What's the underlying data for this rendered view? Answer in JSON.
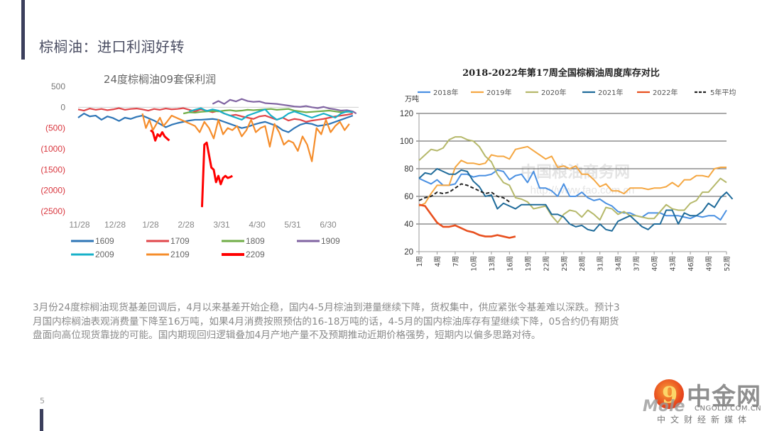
{
  "slide": {
    "title": "棕榈油：进口利润好转",
    "page_number": "5",
    "body_lines": [
      "3月份24度棕榈油现货基差回调后，4月以来基差开始企稳，国内4-5月棕油到港量继续下降，货权集中，供应紧张令基差难以深跌。预计3",
      "月国内棕榈油表观消费量下降至16万吨，如果4月消费按照预估的16-18万吨的话，4-5月的国内棕油库存有望继续下降，05合约仍有期货",
      "盘面向高位现货靠拢的可能。国内期现回归逻辑叠加4月产地产量不及预期推动近期价格强势，短期内以偏多思路对待。"
    ]
  },
  "logo": {
    "name_cn": "中金网",
    "url": "CNGOLD.COM.CN",
    "tagline": "中文财经新媒体",
    "overlay_text": "Mole",
    "glyph": "9"
  },
  "chart_data": [
    {
      "type": "line",
      "title": "24度棕榈油09套保利润",
      "xlabel": "",
      "ylabel": "",
      "ylim": [
        -2500,
        500
      ],
      "yticks": [
        500,
        0,
        -500,
        -1000,
        -1500,
        -2000,
        -2500
      ],
      "ytick_labels": [
        "500",
        "0",
        "(500)",
        "(1000)",
        "(1500)",
        "(2000)",
        "(2500)"
      ],
      "xtick_labels": [
        "11/28",
        "12/28",
        "1/28",
        "2/28",
        "3/31",
        "4/30",
        "5/31",
        "6/30"
      ],
      "legend_position": "bottom",
      "x_domain": [
        0,
        240
      ],
      "series": [
        {
          "name": "1609",
          "color": "#2e75b6",
          "x": [
            0,
            5,
            10,
            15,
            20,
            25,
            30,
            35,
            40,
            45,
            50,
            55,
            60,
            65,
            70,
            75,
            80,
            85,
            90,
            95,
            100,
            105,
            110,
            115,
            120,
            125,
            130,
            135,
            140,
            145,
            150,
            155,
            160,
            165,
            170,
            175,
            180,
            185,
            190,
            195,
            200,
            205,
            210,
            215,
            220,
            225,
            230,
            235
          ],
          "values": [
            -250,
            -150,
            -220,
            -200,
            -300,
            -220,
            -260,
            -330,
            -250,
            -280,
            -230,
            -200,
            -260,
            -320,
            -400,
            -480,
            -420,
            -380,
            -350,
            -320,
            -300,
            -300,
            -290,
            -280,
            -300,
            -350,
            -400,
            -450,
            -500,
            -470,
            -420,
            -380,
            -350,
            -400,
            -450,
            -550,
            -600,
            -500,
            -420,
            -380,
            -400,
            -450,
            -430,
            -400,
            -350,
            -300,
            -250,
            -200
          ]
        },
        {
          "name": "1709",
          "color": "#e0464a",
          "x": [
            0,
            5,
            10,
            15,
            20,
            25,
            30,
            35,
            40,
            45,
            50,
            55,
            60,
            65,
            70,
            75,
            80,
            85,
            90,
            95,
            100,
            105,
            110,
            115,
            120,
            125,
            130,
            135,
            140,
            145,
            150,
            155,
            160,
            165,
            170,
            175,
            180,
            185,
            190,
            195,
            200,
            205,
            210,
            215,
            220,
            225,
            230,
            235
          ],
          "values": [
            -50,
            -80,
            -30,
            -60,
            -40,
            -70,
            -50,
            -20,
            -60,
            -40,
            -30,
            -50,
            -80,
            -40,
            -60,
            -30,
            -50,
            -40,
            -20,
            -60,
            -100,
            -50,
            -80,
            -120,
            -80,
            -150,
            -200,
            -180,
            -220,
            -250,
            -280,
            -220,
            -200,
            -250,
            -300,
            -250,
            -320,
            -280,
            -300,
            -350,
            -320,
            -300,
            -280,
            -250,
            -220,
            -200,
            -180,
            -150
          ]
        },
        {
          "name": "1809",
          "color": "#70ad47",
          "x": [
            90,
            95,
            100,
            105,
            110,
            115,
            120,
            125,
            130,
            135,
            140,
            145,
            150,
            155,
            160,
            165,
            170,
            175,
            180,
            185,
            190,
            195,
            200,
            205,
            210,
            215,
            220,
            225,
            230,
            235
          ],
          "values": [
            -150,
            -120,
            -130,
            -110,
            -100,
            -90,
            -100,
            -80,
            -70,
            -90,
            -80,
            -60,
            -70,
            -60,
            -50,
            -40,
            -60,
            -50,
            -40,
            -80,
            -100,
            -120,
            -110,
            -100,
            -90,
            -80,
            -100,
            -120,
            -110,
            -100
          ]
        },
        {
          "name": "1909",
          "color": "#8064a2",
          "x": [
            115,
            120,
            125,
            130,
            135,
            140,
            145,
            150,
            155,
            160,
            165,
            170,
            175,
            180,
            185,
            190,
            195,
            200,
            205,
            210,
            215,
            220,
            225,
            230,
            235,
            238
          ],
          "values": [
            80,
            150,
            80,
            180,
            140,
            200,
            150,
            130,
            140,
            100,
            90,
            80,
            60,
            40,
            20,
            10,
            30,
            0,
            -20,
            10,
            -30,
            -50,
            -80,
            -70,
            -100,
            -150
          ]
        },
        {
          "name": "2009",
          "color": "#17b1c9",
          "x": [
            95,
            100,
            105,
            110,
            115,
            120,
            125,
            130,
            135,
            140,
            145,
            150,
            155,
            160,
            165,
            170,
            175,
            180,
            185,
            190,
            195,
            200,
            205,
            210,
            215,
            220,
            225,
            230,
            235
          ],
          "values": [
            -100,
            -60,
            -20,
            -90,
            -50,
            -80,
            -150,
            -200,
            -250,
            -300,
            -200,
            -150,
            -100,
            -50,
            -200,
            -300,
            -250,
            -150,
            -100,
            -150,
            -200,
            -250,
            -200,
            -150,
            -200,
            -250,
            -150,
            -100,
            -120
          ]
        },
        {
          "name": "2109",
          "color": "#f58d2b",
          "x": [
            55,
            58,
            61,
            64,
            67,
            70,
            73,
            76,
            80,
            84,
            88,
            92,
            96,
            100,
            104,
            108,
            112,
            116,
            120,
            124,
            128,
            132,
            136,
            140,
            144,
            148,
            152,
            156,
            160,
            164,
            168,
            172,
            176,
            180,
            184,
            188,
            192,
            196,
            200,
            204,
            208,
            212,
            216,
            220,
            224,
            228,
            232
          ],
          "values": [
            -150,
            -500,
            -300,
            -550,
            -400,
            -250,
            -450,
            -350,
            -200,
            -250,
            -300,
            -350,
            -400,
            -450,
            -600,
            -350,
            -500,
            -750,
            -300,
            -650,
            -500,
            -550,
            -450,
            -700,
            -550,
            -300,
            -600,
            -500,
            -450,
            -950,
            -400,
            -600,
            -900,
            -800,
            -850,
            -1050,
            -700,
            -900,
            -1300,
            -500,
            -650,
            -300,
            -600,
            -450,
            -350,
            -550,
            -400
          ]
        },
        {
          "name": "2209",
          "color": "#ff0000",
          "x": [
            62,
            64,
            66,
            68,
            70,
            72,
            74,
            76,
            78,
            106,
            108,
            110,
            114,
            116,
            118,
            120,
            122,
            124,
            126,
            128,
            130,
            132
          ],
          "values": [
            -550,
            -600,
            -800,
            -650,
            -700,
            -600,
            -700,
            -750,
            -800,
            -2400,
            -900,
            -850,
            -1450,
            -1500,
            -1800,
            -1650,
            -1850,
            -1700,
            -1650,
            -1700,
            -1680,
            -1650
          ]
        }
      ]
    },
    {
      "type": "line",
      "title": "2018-2022年第17周全国棕榈油周度库存对比",
      "ylabel": "万吨",
      "xlabel": "",
      "ylim": [
        20,
        120
      ],
      "yticks": [
        20,
        40,
        60,
        80,
        100,
        120
      ],
      "xtick_labels": [
        "1周",
        "4周",
        "7周",
        "10周",
        "13周",
        "16周",
        "19周",
        "22周",
        "25周",
        "28周",
        "31周",
        "34周",
        "37周",
        "40周",
        "43周",
        "46周",
        "49周",
        "52周"
      ],
      "x_domain": [
        1,
        52
      ],
      "grid": true,
      "legend_position": "top",
      "watermark": "中国粮油商务网 http://www.fao.com.cn",
      "series": [
        {
          "name": "2018年",
          "color": "#4a90e2",
          "dash": false,
          "values": [
            73,
            71,
            69,
            72,
            68,
            68,
            69,
            76,
            76,
            74,
            75,
            75,
            76,
            79,
            78,
            72,
            75,
            76,
            70,
            78,
            66,
            66,
            64,
            60,
            69,
            60,
            60,
            63,
            59,
            57,
            58,
            55,
            53,
            49,
            48,
            48,
            46,
            45,
            48,
            48,
            48,
            46,
            46,
            46,
            45,
            44,
            46,
            45,
            46,
            46,
            43,
            50
          ]
        },
        {
          "name": "2019年",
          "color": "#f5a742",
          "dash": false,
          "values": [
            53,
            55,
            62,
            68,
            68,
            68,
            81,
            86,
            84,
            84,
            83,
            84,
            90,
            89,
            89,
            87,
            94,
            95,
            96,
            93,
            90,
            87,
            89,
            81,
            82,
            80,
            82,
            76,
            76,
            72,
            67,
            69,
            64,
            64,
            62,
            66,
            66,
            66,
            65,
            66,
            66,
            67,
            70,
            67,
            72,
            72,
            75,
            75,
            74,
            80,
            81,
            81
          ]
        },
        {
          "name": "2020年",
          "color": "#b5b86a",
          "dash": false,
          "values": [
            86,
            90,
            94,
            93,
            95,
            101,
            103,
            103,
            101,
            100,
            96,
            89,
            85,
            76,
            70,
            68,
            59,
            58,
            56,
            51,
            52,
            53,
            46,
            41,
            47,
            50,
            49,
            45,
            50,
            47,
            43,
            52,
            51,
            47,
            49,
            46,
            46,
            45,
            44,
            44,
            49,
            54,
            51,
            50,
            50,
            55,
            57,
            63,
            63,
            68,
            73,
            70
          ]
        },
        {
          "name": "2021年",
          "color": "#1f6b9a",
          "dash": false,
          "values": [
            73,
            77,
            76,
            80,
            78,
            76,
            76,
            79,
            78,
            71,
            67,
            60,
            61,
            51,
            55,
            53,
            51,
            54,
            54,
            54,
            54,
            54,
            47,
            47,
            45,
            40,
            38,
            39,
            36,
            35,
            40,
            36,
            35,
            42,
            44,
            46,
            42,
            38,
            36,
            40,
            40,
            50,
            50,
            40,
            48,
            46,
            46,
            49,
            55,
            52,
            59,
            63,
            58
          ]
        },
        {
          "name": "2022年",
          "color": "#e8501f",
          "dash": false,
          "values": [
            54,
            53,
            47,
            41,
            38,
            38,
            39,
            37,
            35,
            34,
            32,
            31,
            31,
            32,
            31,
            30,
            31
          ]
        },
        {
          "name": "5年平均",
          "color": "#222222",
          "dash": true,
          "values": [
            57,
            59,
            60,
            63,
            62,
            63,
            66,
            69,
            68,
            66,
            64,
            62,
            63,
            60,
            59,
            56
          ]
        }
      ]
    }
  ]
}
